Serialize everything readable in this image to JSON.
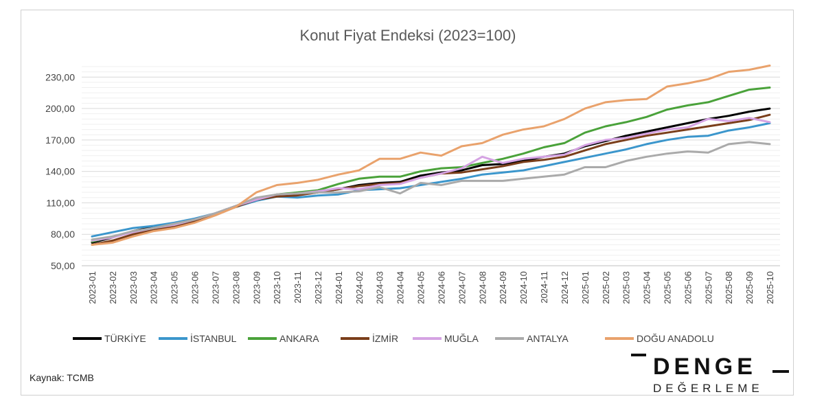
{
  "chart_data": {
    "type": "line",
    "title": "Konut Fiyat Endeksi (2023=100)",
    "ylim": [
      50,
      240
    ],
    "yticks": [
      "50,00",
      "80,00",
      "110,00",
      "140,00",
      "170,00",
      "200,00",
      "230,00"
    ],
    "ytick_values": [
      50,
      80,
      110,
      140,
      170,
      200,
      230
    ],
    "grid": true,
    "legend_position": "bottom",
    "x": [
      "2023-01",
      "2023-02",
      "2023-03",
      "2023-04",
      "2023-05",
      "2023-06",
      "2023-07",
      "2023-08",
      "2023-09",
      "2023-10",
      "2023-11",
      "2023-12",
      "2024-01",
      "2024-02",
      "2024-03",
      "2024-04",
      "2024-05",
      "2024-06",
      "2024-07",
      "2024-08",
      "2024-09",
      "2024-10",
      "2024-11",
      "2024-12",
      "2025-01",
      "2025-02",
      "2025-03",
      "2025-04",
      "2025-05",
      "2025-06",
      "2025-07",
      "2025-08",
      "2025-09",
      "2025-10"
    ],
    "series": [
      {
        "name": "TÜRKİYE",
        "color": "#000000",
        "values": [
          72,
          77,
          83,
          87,
          90,
          94,
          100,
          107,
          114,
          117,
          118,
          120,
          123,
          127,
          129,
          130,
          136,
          139,
          141,
          146,
          147,
          150,
          154,
          157,
          164,
          169,
          174,
          178,
          182,
          186,
          190,
          193,
          197,
          200
        ]
      },
      {
        "name": "İSTANBUL",
        "color": "#3b96cc",
        "values": [
          78,
          82,
          86,
          88,
          91,
          95,
          100,
          106,
          112,
          116,
          115,
          117,
          118,
          122,
          123,
          124,
          127,
          130,
          133,
          137,
          139,
          141,
          145,
          149,
          153,
          157,
          161,
          166,
          170,
          173,
          174,
          179,
          182,
          186
        ]
      },
      {
        "name": "ANKARA",
        "color": "#4aa23a",
        "values": [
          73,
          78,
          82,
          86,
          89,
          93,
          99,
          106,
          114,
          118,
          120,
          122,
          128,
          133,
          135,
          135,
          140,
          143,
          144,
          148,
          152,
          157,
          163,
          167,
          177,
          183,
          187,
          192,
          199,
          203,
          206,
          212,
          218,
          220
        ]
      },
      {
        "name": "İZMİR",
        "color": "#7a3e1a",
        "values": [
          70,
          74,
          80,
          84,
          88,
          92,
          99,
          106,
          113,
          116,
          117,
          120,
          123,
          126,
          128,
          129,
          134,
          138,
          139,
          142,
          145,
          149,
          151,
          154,
          160,
          166,
          170,
          174,
          177,
          180,
          183,
          186,
          189,
          194
        ]
      },
      {
        "name": "MUĞLA",
        "color": "#d5a3e3",
        "values": [
          74,
          77,
          82,
          86,
          89,
          94,
          100,
          107,
          113,
          118,
          119,
          121,
          124,
          123,
          127,
          128,
          134,
          138,
          143,
          154,
          148,
          152,
          154,
          156,
          165,
          170,
          172,
          176,
          180,
          182,
          190,
          188,
          191,
          187
        ]
      },
      {
        "name": "ANTALYA",
        "color": "#aaaaaa",
        "values": [
          75,
          78,
          83,
          86,
          90,
          94,
          100,
          107,
          115,
          118,
          119,
          120,
          120,
          121,
          125,
          119,
          129,
          127,
          131,
          131,
          131,
          133,
          135,
          137,
          144,
          144,
          150,
          154,
          157,
          159,
          158,
          166,
          168,
          166
        ]
      },
      {
        "name": "DOĞU ANADOLU",
        "color": "#e9a26c",
        "values": [
          70,
          72,
          78,
          83,
          86,
          91,
          98,
          106,
          120,
          127,
          129,
          132,
          137,
          141,
          152,
          152,
          158,
          155,
          164,
          167,
          175,
          180,
          183,
          190,
          200,
          206,
          208,
          209,
          221,
          224,
          228,
          235,
          237,
          241
        ]
      }
    ]
  },
  "source_note": "Kaynak: TCMB",
  "brand": {
    "name": "DENGE",
    "subtitle": "DEĞERLEME"
  }
}
